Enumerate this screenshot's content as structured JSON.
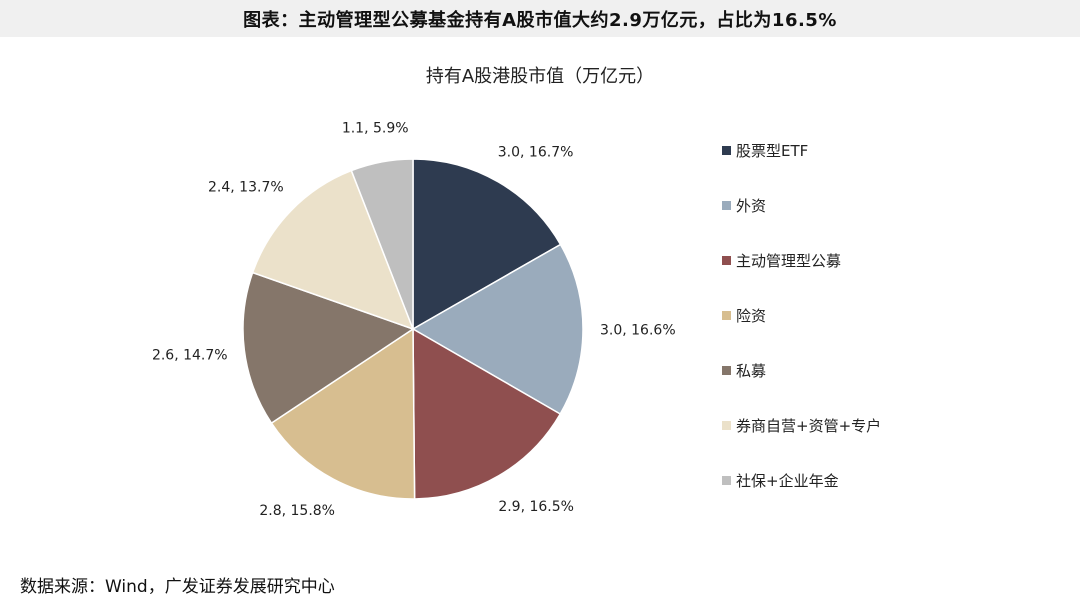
{
  "header": {
    "title": "图表：主动管理型公募基金持有A股市值大约2.9万亿元，占比为16.5%"
  },
  "source": {
    "text": "数据来源：Wind，广发证券发展研究中心"
  },
  "chart_data": {
    "type": "pie",
    "title": "持有A股港股市值（万亿元）",
    "legend_position": "right",
    "slices": [
      {
        "name": "股票型ETF",
        "value": 3.0,
        "percent": 16.7,
        "label": "3.0, 16.7%",
        "color": "#2e3b50"
      },
      {
        "name": "外资",
        "value": 3.0,
        "percent": 16.6,
        "label": "3.0, 16.6%",
        "color": "#9aabbc"
      },
      {
        "name": "主动管理型公募",
        "value": 2.9,
        "percent": 16.5,
        "label": "2.9, 16.5%",
        "color": "#8f4f4f"
      },
      {
        "name": "险资",
        "value": 2.8,
        "percent": 15.8,
        "label": "2.8, 15.8%",
        "color": "#d7be90"
      },
      {
        "name": "私募",
        "value": 2.6,
        "percent": 14.7,
        "label": "2.6, 14.7%",
        "color": "#85766a"
      },
      {
        "name": "券商自营+资管+专户",
        "value": 2.4,
        "percent": 13.7,
        "label": "2.4, 13.7%",
        "color": "#ebe1ca"
      },
      {
        "name": "社保+企业年金",
        "value": 1.1,
        "percent": 5.9,
        "label": "1.1, 5.9%",
        "color": "#bfbfbf"
      }
    ]
  }
}
